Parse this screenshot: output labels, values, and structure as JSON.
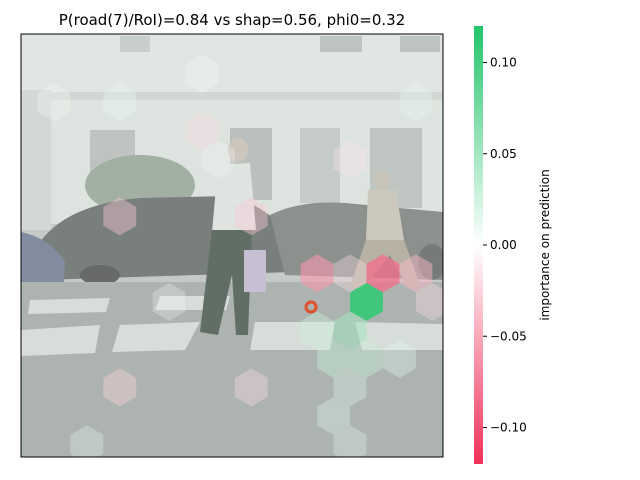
{
  "chart_data": {
    "type": "heatmap",
    "title": "P(road(7)/RoI)=0.84 vs shap=0.56, phi0=0.32",
    "background": "street scene photo with pedestrians on a zebra crossing (shown desaturated)",
    "overlay": "hexagonal superpixel SHAP importance map",
    "colorbar": {
      "label": "importance on prediction",
      "vmin": -0.12,
      "vmax": 0.12,
      "ticks": [
        0.1,
        0.05,
        0.0,
        -0.05,
        -0.1
      ],
      "tick_labels": [
        "0.10",
        "0.05",
        "0.00",
        "−0.05",
        "−0.10"
      ],
      "color_low": "#f0305a",
      "color_mid": "#ffffff",
      "color_high": "#22c46a"
    },
    "roi_marker_color": "#e0502a",
    "hex_values": [
      {
        "col": 5,
        "row": 3,
        "value": -0.02
      },
      {
        "col": 10,
        "row": 4,
        "value": -0.015
      },
      {
        "col": 7,
        "row": 6,
        "value": -0.03
      },
      {
        "col": 3,
        "row": 6,
        "value": -0.03
      },
      {
        "col": 9,
        "row": 8,
        "value": -0.06
      },
      {
        "col": 10,
        "row": 8,
        "value": -0.02
      },
      {
        "col": 11,
        "row": 8,
        "value": -0.085
      },
      {
        "col": 12,
        "row": 8,
        "value": -0.04
      },
      {
        "col": 13,
        "row": 9,
        "value": -0.02
      },
      {
        "col": 10,
        "row": 9,
        "value": 0.11
      },
      {
        "col": 12,
        "row": 9,
        "value": -0.02
      },
      {
        "col": 9,
        "row": 10,
        "value": 0.03
      },
      {
        "col": 10,
        "row": 10,
        "value": 0.05
      },
      {
        "col": 10,
        "row": 11,
        "value": 0.03
      },
      {
        "col": 9,
        "row": 11,
        "value": 0.03
      },
      {
        "col": 11,
        "row": 11,
        "value": 0.015
      },
      {
        "col": 10,
        "row": 12,
        "value": 0.02
      },
      {
        "col": 3,
        "row": 12,
        "value": -0.025
      },
      {
        "col": 7,
        "row": 12,
        "value": -0.02
      },
      {
        "col": 9,
        "row": 13,
        "value": 0.015
      },
      {
        "col": 10,
        "row": 14,
        "value": 0.01
      },
      {
        "col": 2,
        "row": 14,
        "value": 0.01
      },
      {
        "col": 1,
        "row": 2,
        "value": 0.005
      },
      {
        "col": 3,
        "row": 2,
        "value": 0.008
      },
      {
        "col": 5,
        "row": 1,
        "value": 0.006
      },
      {
        "col": 12,
        "row": 2,
        "value": 0.01
      },
      {
        "col": 6,
        "row": 4,
        "value": 0.004
      },
      {
        "col": 4,
        "row": 9,
        "value": 0.005
      }
    ]
  }
}
